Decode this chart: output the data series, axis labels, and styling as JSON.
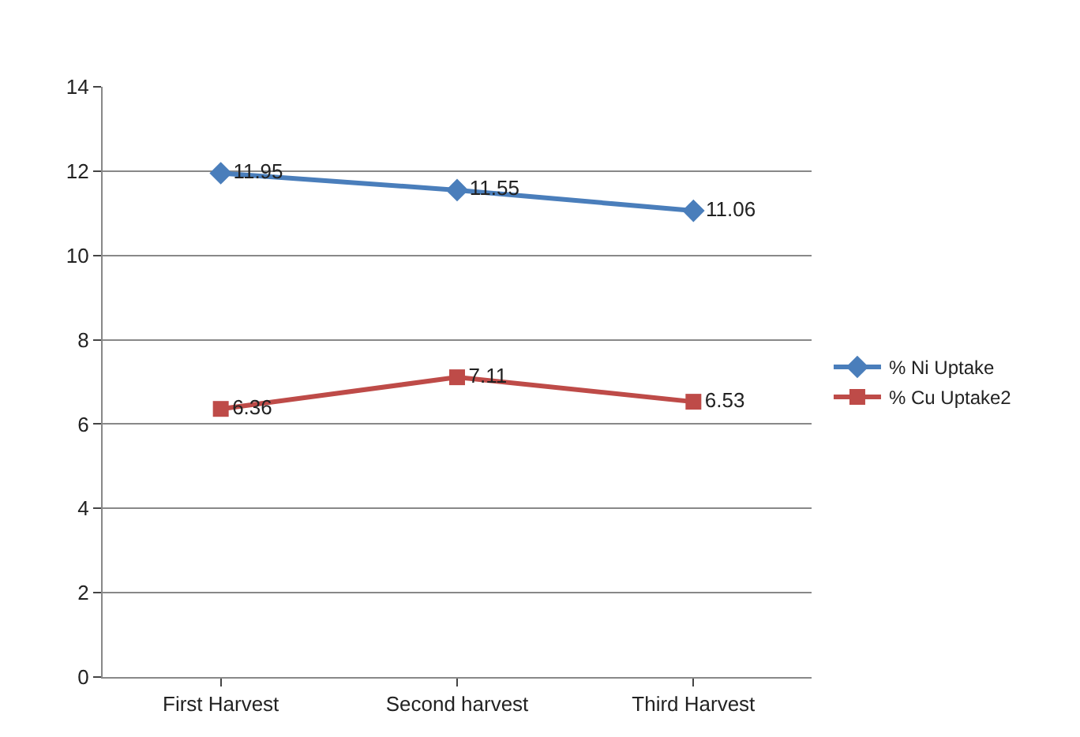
{
  "chart_data": {
    "type": "line",
    "categories": [
      "First Harvest",
      "Second harvest",
      "Third Harvest"
    ],
    "series": [
      {
        "name": "% Ni Uptake",
        "color": "#4a7ebb",
        "values": [
          11.95,
          11.55,
          11.06
        ],
        "marker": "diamond"
      },
      {
        "name": "% Cu Uptake2",
        "color": "#be4b48",
        "values": [
          6.36,
          7.11,
          6.53
        ],
        "marker": "square"
      }
    ],
    "ylim": [
      0,
      14
    ],
    "yticks": [
      0,
      2,
      4,
      6,
      8,
      10,
      12,
      14
    ],
    "grid": "y",
    "legend": "right",
    "data_labels": true,
    "line_style": "solid"
  }
}
